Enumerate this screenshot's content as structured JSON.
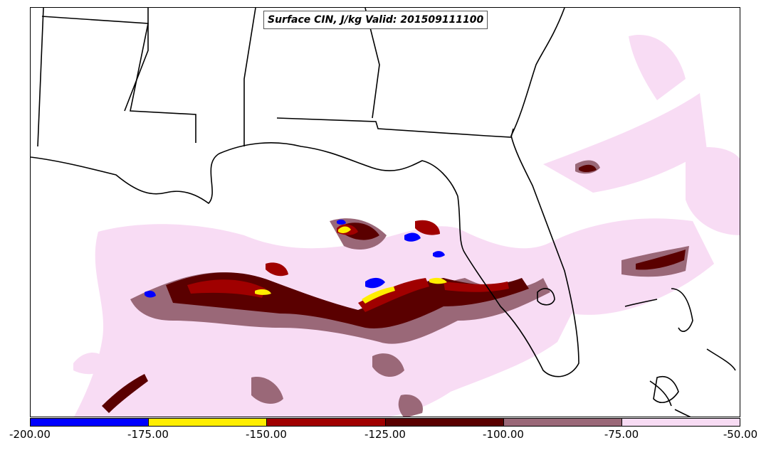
{
  "title": "Surface CIN, J/kg Valid: 201509111100",
  "colorbar": {
    "ticks": [
      "-200.00",
      "-175.00",
      "-150.00",
      "-125.00",
      "-100.00",
      "-75.00",
      "-50.00"
    ],
    "colors": [
      "#0000ff",
      "#ffee00",
      "#a00000",
      "#5a0000",
      "#9a6878",
      "#f8dcf4"
    ]
  },
  "map": {
    "background": "#ffffff",
    "outline_color": "#000000"
  }
}
